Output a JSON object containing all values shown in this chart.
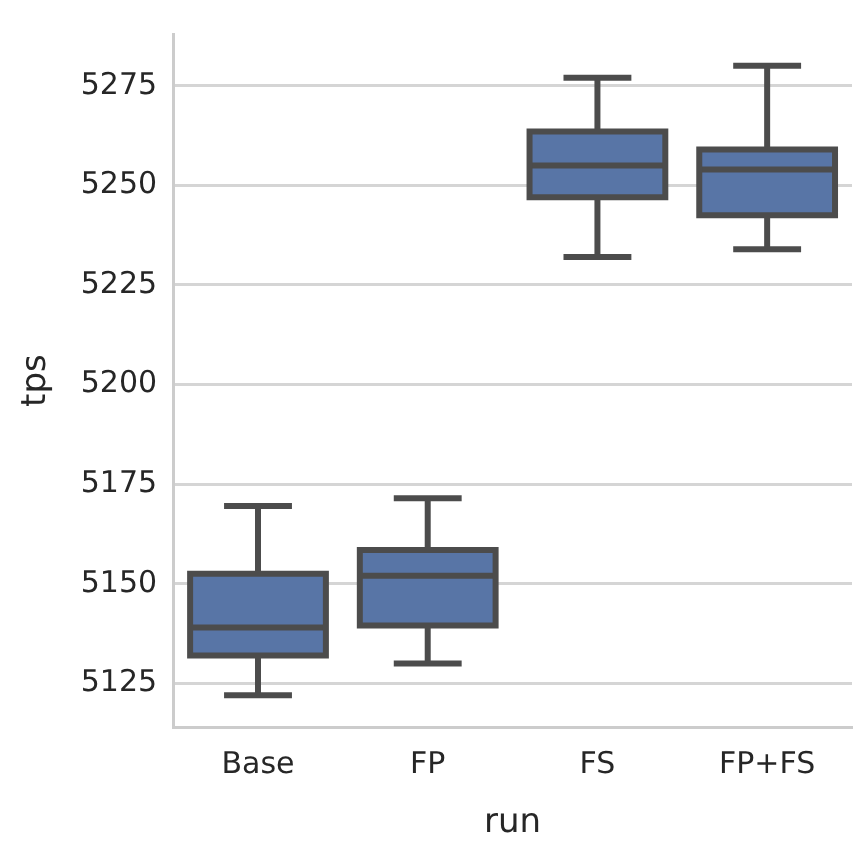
{
  "chart_data": {
    "type": "box",
    "xlabel": "run",
    "ylabel": "tps",
    "categories": [
      "Base",
      "FP",
      "FS",
      "FP+FS"
    ],
    "boxes": [
      {
        "low": 5122,
        "q1": 5132,
        "median": 5139,
        "q3": 5152.5,
        "high": 5169.5
      },
      {
        "low": 5130,
        "q1": 5139.5,
        "median": 5152,
        "q3": 5158.5,
        "high": 5171.5
      },
      {
        "low": 5232,
        "q1": 5247,
        "median": 5255,
        "q3": 5263.5,
        "high": 5277
      },
      {
        "low": 5234,
        "q1": 5242.5,
        "median": 5254,
        "q3": 5259,
        "high": 5280
      }
    ],
    "color": "#5875a6",
    "ylim": [
      5114,
      5288
    ],
    "yticks": [
      5125,
      5150,
      5175,
      5200,
      5225,
      5250,
      5275
    ],
    "grid": "y",
    "legend": false
  }
}
